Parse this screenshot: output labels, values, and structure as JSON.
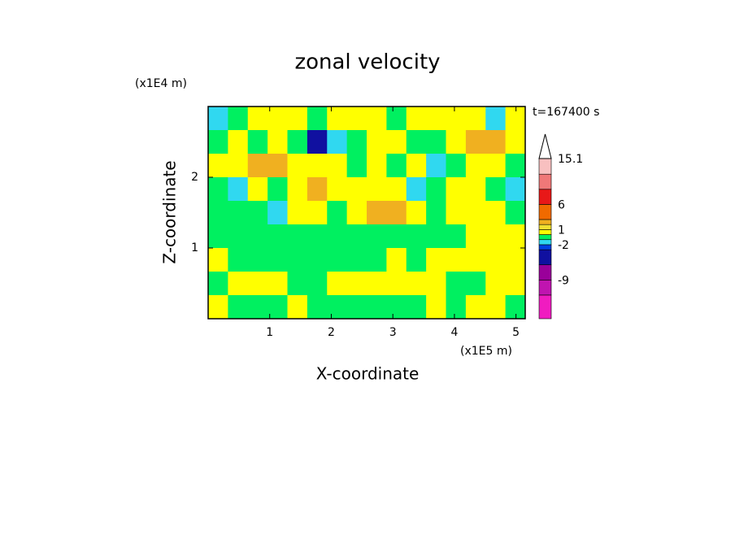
{
  "chart_data": {
    "type": "contour",
    "title": "zonal velocity",
    "x_label": "X-coordinate",
    "x_unit": "(x1E5 m)",
    "y_label": "Z-coordinate",
    "y_unit": "(x1E4 m)",
    "annotation": "t=167400 s",
    "xlim": [
      0,
      5.15
    ],
    "xticks": [
      1,
      2,
      3,
      4,
      5
    ],
    "ylim": [
      0,
      3.0
    ],
    "yticks": [
      1,
      2
    ],
    "z": [
      [
        -1.5,
        -0.5,
        0.5,
        0.5,
        0.5,
        -0.5,
        0.5,
        0.5,
        0.5,
        -0.5,
        0.5,
        0.5,
        0.5,
        0.5,
        -1.5,
        0.5
      ],
      [
        -0.5,
        0.5,
        -0.5,
        0.5,
        -0.5,
        -5,
        -1.5,
        -0.5,
        0.5,
        0.5,
        -0.5,
        -0.5,
        0.5,
        2,
        2,
        0.5
      ],
      [
        0.5,
        0.5,
        2,
        2,
        0.5,
        0.5,
        0.5,
        -0.5,
        0.5,
        -0.5,
        0.5,
        -1.5,
        -0.5,
        0.5,
        0.5,
        -0.5
      ],
      [
        -0.5,
        -1.5,
        0.5,
        -0.5,
        0.5,
        2,
        0.5,
        0.5,
        0.5,
        0.5,
        -1.5,
        -0.5,
        0.5,
        0.5,
        -0.5,
        -1.5
      ],
      [
        -0.5,
        -0.5,
        -0.5,
        -1.5,
        0.5,
        0.5,
        -0.5,
        0.5,
        2,
        2,
        0.5,
        -0.5,
        0.5,
        0.5,
        0.5,
        -0.5
      ],
      [
        -0.5,
        -0.5,
        -0.5,
        -0.5,
        -0.5,
        -0.5,
        -0.5,
        -0.5,
        -0.5,
        -0.5,
        -0.5,
        -0.5,
        -0.5,
        0.5,
        0.5,
        0.5
      ],
      [
        0.5,
        -0.5,
        -0.5,
        -0.5,
        -0.5,
        -0.5,
        -0.5,
        -0.5,
        -0.5,
        0.5,
        -0.5,
        0.5,
        0.5,
        0.5,
        0.5,
        0.5
      ],
      [
        -0.5,
        0.5,
        0.5,
        0.5,
        -0.5,
        -0.5,
        0.5,
        0.5,
        0.5,
        0.5,
        0.5,
        0.5,
        -0.5,
        -0.5,
        0.5,
        0.5
      ],
      [
        0.5,
        -0.5,
        -0.5,
        -0.5,
        0.5,
        -0.5,
        -0.5,
        -0.5,
        -0.5,
        -0.5,
        -0.5,
        0.5,
        -0.5,
        0.5,
        0.5,
        -0.5
      ]
    ],
    "colorbar": {
      "levels": [
        -16.7,
        -12,
        -9,
        -6,
        -3,
        -2,
        -1,
        0,
        1,
        2,
        3,
        6,
        9,
        12,
        15.1
      ],
      "colors": [
        "#f01cc0",
        "#c014b0",
        "#9a009a",
        "#1010a0",
        "#0040e0",
        "#30d8f0",
        "#00f060",
        "#ffff00",
        "#f0e030",
        "#f0b020",
        "#f06a00",
        "#e81818",
        "#f07878",
        "#f8c0c0"
      ],
      "ticks": [
        15.1,
        6,
        1,
        -2,
        -9
      ]
    }
  }
}
